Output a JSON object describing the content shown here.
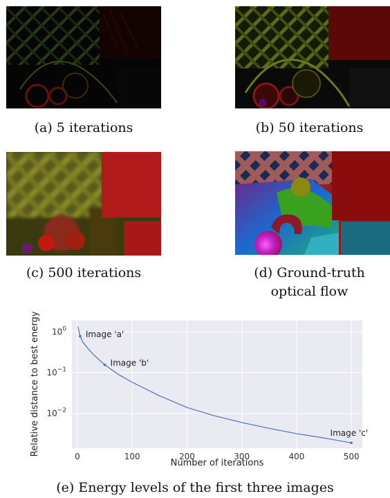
{
  "panels": [
    {
      "caption": "(a) 5 iterations"
    },
    {
      "caption": "(b) 50 iterations"
    },
    {
      "caption": "(c) 500 iterations"
    },
    {
      "caption_line1": "(d) Ground-truth",
      "caption_line2": "optical flow"
    }
  ],
  "figure_caption": "(e) Energy levels of the first three images",
  "chart_data": {
    "type": "line",
    "xlabel": "Number of iterations",
    "ylabel": "Relative distance to best energy",
    "x_ticks": [
      0,
      100,
      200,
      300,
      400,
      500
    ],
    "y_ticks": [
      {
        "value": 1,
        "label": "10^0"
      },
      {
        "value": 0.1,
        "label": "10^-1"
      },
      {
        "value": 0.01,
        "label": "10^-2"
      }
    ],
    "y_scale": "log",
    "xlim": [
      -10,
      520
    ],
    "ylim": [
      0.0014,
      1.9
    ],
    "grid": true,
    "series": [
      {
        "x": [
          1,
          5,
          10,
          20,
          30,
          50,
          75,
          100,
          150,
          200,
          250,
          300,
          350,
          400,
          450,
          500
        ],
        "y": [
          1.35,
          0.78,
          0.56,
          0.38,
          0.27,
          0.155,
          0.09,
          0.058,
          0.027,
          0.014,
          0.0088,
          0.006,
          0.0043,
          0.0032,
          0.0025,
          0.0019
        ],
        "color": "#4c72b0"
      }
    ],
    "annotations": [
      {
        "text": "Image 'a'",
        "x": 5,
        "y": 0.78
      },
      {
        "text": "Image 'b'",
        "x": 50,
        "y": 0.155
      },
      {
        "text": "Image 'c'",
        "x": 500,
        "y": 0.0019
      }
    ]
  }
}
